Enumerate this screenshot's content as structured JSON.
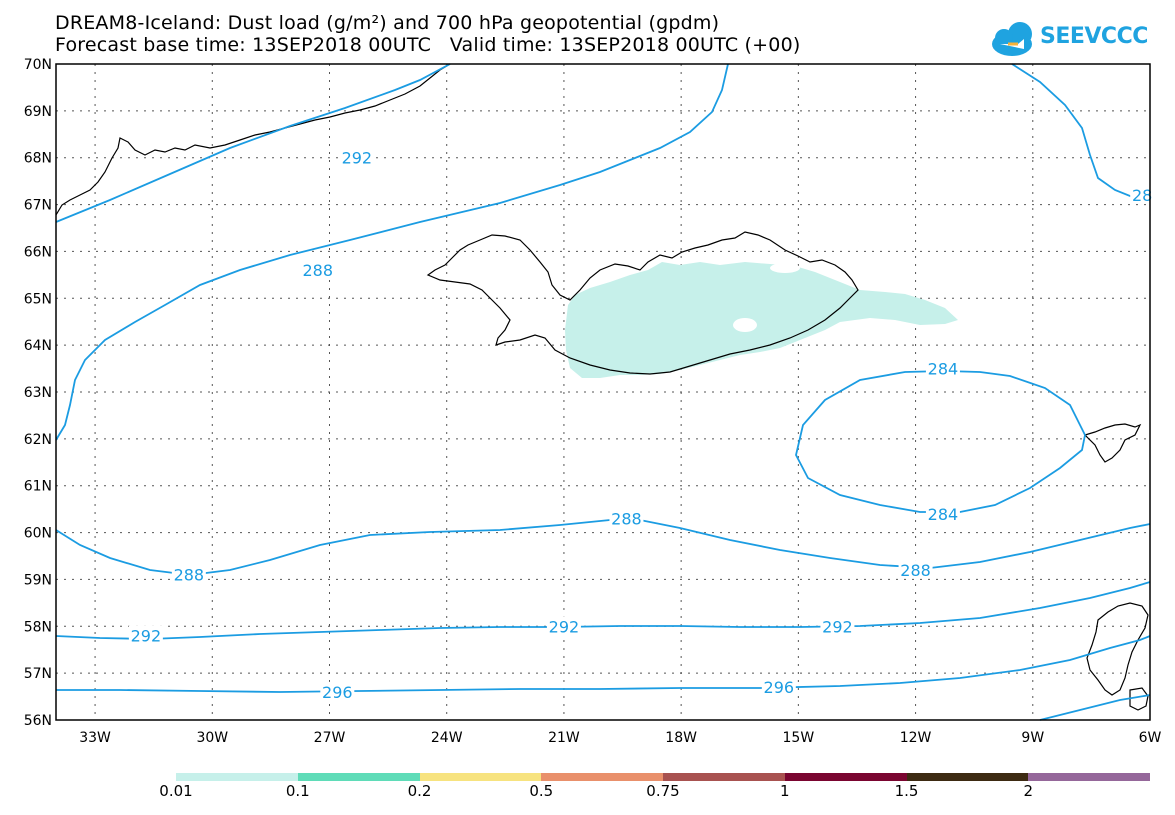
{
  "header": {
    "title_line1": "DREAM8-Iceland: Dust load (g/m²) and 700 hPa geopotential (gpdm)",
    "title_line2": "Forecast base time: 13SEP2018 00UTC   Valid time: 13SEP2018 00UTC (+00)"
  },
  "logo": {
    "text": "SEEVCCC",
    "color": "#1fa3e0",
    "icon": "cloud-icon"
  },
  "map": {
    "lon_range": [
      -34,
      -6
    ],
    "lat_range": [
      56,
      70
    ],
    "lat_labels": [
      "70N",
      "69N",
      "68N",
      "67N",
      "66N",
      "65N",
      "64N",
      "63N",
      "62N",
      "61N",
      "60N",
      "59N",
      "58N",
      "57N",
      "56N"
    ],
    "lon_labels": [
      "33W",
      "30W",
      "27W",
      "24W",
      "21W",
      "18W",
      "15W",
      "12W",
      "9W",
      "6W"
    ],
    "contour_color": "#1b9ce2",
    "dust_color": "#c6f0ea",
    "contour_labels": [
      {
        "text": "292",
        "lon": -26.3,
        "lat": 68.0
      },
      {
        "text": "288",
        "lon": -27.3,
        "lat": 65.6
      },
      {
        "text": "28",
        "lon": -6.2,
        "lat": 67.2
      },
      {
        "text": "284",
        "lon": -11.3,
        "lat": 63.5
      },
      {
        "text": "284",
        "lon": -11.3,
        "lat": 60.4
      },
      {
        "text": "288",
        "lon": -19.4,
        "lat": 60.3
      },
      {
        "text": "288",
        "lon": -30.6,
        "lat": 59.1
      },
      {
        "text": "288",
        "lon": -12.0,
        "lat": 59.2
      },
      {
        "text": "292",
        "lon": -31.7,
        "lat": 57.8
      },
      {
        "text": "292",
        "lon": -21.0,
        "lat": 58.0
      },
      {
        "text": "292",
        "lon": -14.0,
        "lat": 58.0
      },
      {
        "text": "296",
        "lon": -26.8,
        "lat": 56.6
      },
      {
        "text": "296",
        "lon": -15.5,
        "lat": 56.7
      }
    ]
  },
  "colorbar": {
    "segments": [
      {
        "color": "#c6f0ea"
      },
      {
        "color": "#5fdcb8"
      },
      {
        "color": "#f7e37f"
      },
      {
        "color": "#e9906b"
      },
      {
        "color": "#a85250"
      },
      {
        "color": "#7a0530"
      },
      {
        "color": "#3d2a12"
      },
      {
        "color": "#95679a"
      }
    ],
    "labels": [
      "0.01",
      "0.1",
      "0.2",
      "0.5",
      "0.75",
      "1",
      "1.5",
      "2"
    ]
  }
}
